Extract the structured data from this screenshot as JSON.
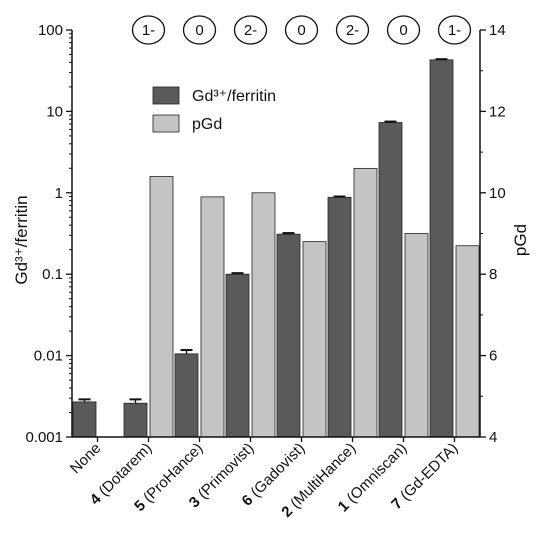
{
  "chart_data": {
    "type": "bar",
    "categories": [
      {
        "num": "",
        "name": "None"
      },
      {
        "num": "4",
        "name": "(Dotarem)"
      },
      {
        "num": "5",
        "name": "(ProHance)"
      },
      {
        "num": "3",
        "name": "(Primovist)"
      },
      {
        "num": "6",
        "name": "(Gadovist)"
      },
      {
        "num": "2",
        "name": "(MultiHance)"
      },
      {
        "num": "1",
        "name": "(Omniscan)"
      },
      {
        "num": "7",
        "name": "(Gd-EDTA)"
      }
    ],
    "charges": [
      "",
      "1-",
      "0",
      "2-",
      "0",
      "2-",
      "0",
      "1-"
    ],
    "series": [
      {
        "name": "Gd³⁺/ferritin",
        "axis": "left",
        "color": "#5a5a5a",
        "values": [
          0.0027,
          0.0026,
          0.0105,
          0.1,
          0.31,
          0.88,
          7.3,
          43
        ],
        "errors": [
          0.0002,
          0.0003,
          0.0012,
          0.003,
          0.01,
          0.02,
          0.2,
          0.8
        ]
      },
      {
        "name": "pGd",
        "axis": "right",
        "color": "#c4c4c4",
        "values": [
          null,
          10.4,
          9.9,
          10.0,
          8.8,
          10.6,
          9.0,
          8.7
        ]
      }
    ],
    "ylabel": "Gd³⁺/ferritin",
    "ylabel_right": "pGd",
    "y_scale": "log",
    "ylim": [
      0.001,
      100
    ],
    "yticks": [
      "0.001",
      "0.01",
      "0.1",
      "1",
      "10",
      "100"
    ],
    "ylim_right": [
      4,
      14
    ],
    "yticks_right": [
      "4",
      "6",
      "8",
      "10",
      "12",
      "14"
    ],
    "legend_position": "top-center",
    "grid": false
  }
}
